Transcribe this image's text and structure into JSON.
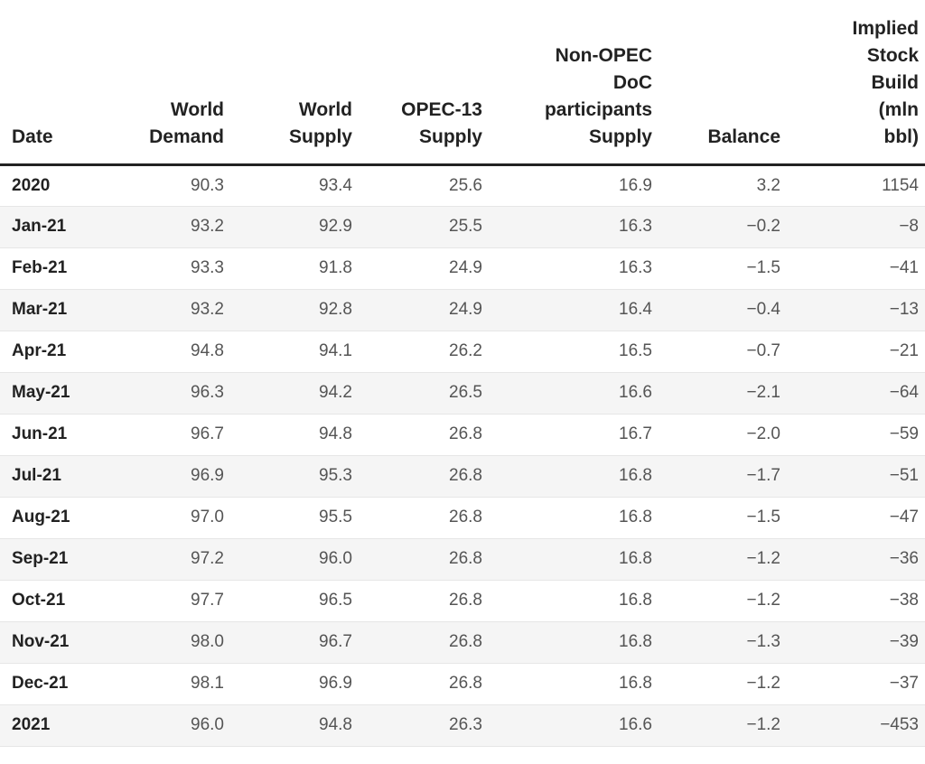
{
  "table": {
    "headers": [
      "Date",
      "World\nDemand",
      "World\nSupply",
      "OPEC-13\nSupply",
      "Non-OPEC\nDoC\nparticipants\nSupply",
      "Balance",
      "Implied\nStock\nBuild\n(mln\nbbl)"
    ],
    "rows": [
      [
        "2020",
        "90.3",
        "93.4",
        "25.6",
        "16.9",
        "3.2",
        "1154"
      ],
      [
        "Jan-21",
        "93.2",
        "92.9",
        "25.5",
        "16.3",
        "−0.2",
        "−8"
      ],
      [
        "Feb-21",
        "93.3",
        "91.8",
        "24.9",
        "16.3",
        "−1.5",
        "−41"
      ],
      [
        "Mar-21",
        "93.2",
        "92.8",
        "24.9",
        "16.4",
        "−0.4",
        "−13"
      ],
      [
        "Apr-21",
        "94.8",
        "94.1",
        "26.2",
        "16.5",
        "−0.7",
        "−21"
      ],
      [
        "May-21",
        "96.3",
        "94.2",
        "26.5",
        "16.6",
        "−2.1",
        "−64"
      ],
      [
        "Jun-21",
        "96.7",
        "94.8",
        "26.8",
        "16.7",
        "−2.0",
        "−59"
      ],
      [
        "Jul-21",
        "96.9",
        "95.3",
        "26.8",
        "16.8",
        "−1.7",
        "−51"
      ],
      [
        "Aug-21",
        "97.0",
        "95.5",
        "26.8",
        "16.8",
        "−1.5",
        "−47"
      ],
      [
        "Sep-21",
        "97.2",
        "96.0",
        "26.8",
        "16.8",
        "−1.2",
        "−36"
      ],
      [
        "Oct-21",
        "97.7",
        "96.5",
        "26.8",
        "16.8",
        "−1.2",
        "−38"
      ],
      [
        "Nov-21",
        "98.0",
        "96.7",
        "26.8",
        "16.8",
        "−1.3",
        "−39"
      ],
      [
        "Dec-21",
        "98.1",
        "96.9",
        "26.8",
        "16.8",
        "−1.2",
        "−37"
      ],
      [
        "2021",
        "96.0",
        "94.8",
        "26.3",
        "16.6",
        "−1.2",
        "−453"
      ]
    ]
  }
}
